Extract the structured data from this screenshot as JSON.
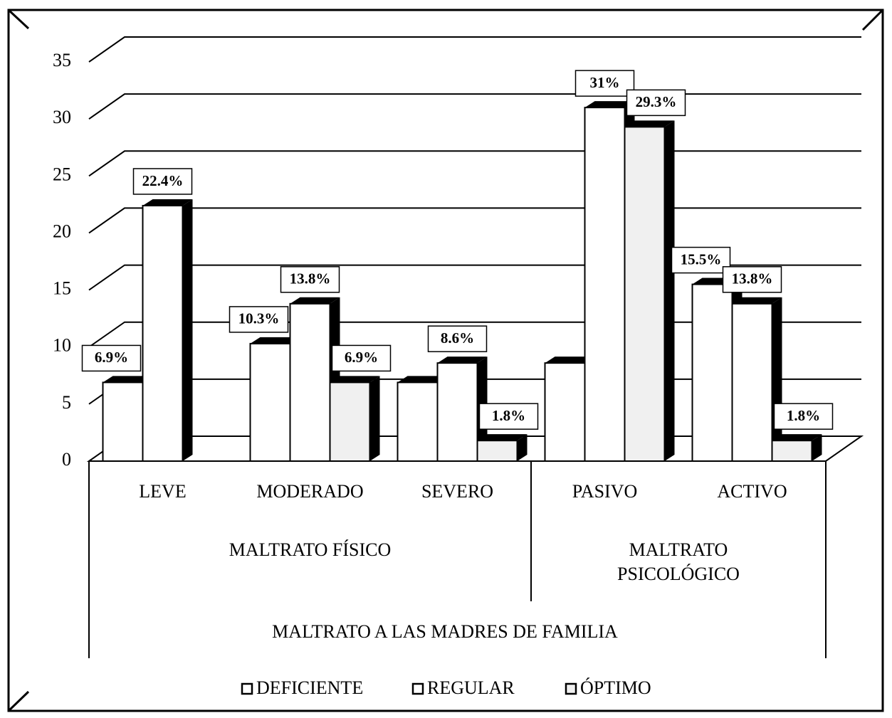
{
  "chart_data": {
    "type": "bar3d",
    "categories": [
      "LEVE",
      "MODERADO",
      "SEVERO",
      "PASIVO",
      "ACTIVO"
    ],
    "groups": [
      {
        "label": "MALTRATO FÍSICO",
        "span": 3
      },
      {
        "label": "MALTRATO PSICOLÓGICO",
        "span": 2
      }
    ],
    "xlabel": "MALTRATO A LAS MADRES DE FAMILIA",
    "series": [
      {
        "name": "DEFICIENTE",
        "color": "#ffffff",
        "values": [
          6.9,
          10.3,
          6.9,
          8.6,
          15.5
        ],
        "value_labels": [
          "6.9%",
          "10.3%",
          null,
          null,
          "15.5%"
        ]
      },
      {
        "name": "REGULAR",
        "color": "#ffffff",
        "values": [
          22.4,
          13.8,
          8.6,
          31,
          13.8
        ],
        "value_labels": [
          "22.4%",
          "13.8%",
          "8.6%",
          "31%",
          "13.8%"
        ]
      },
      {
        "name": "ÓPTIMO",
        "color": "#f0f0f0",
        "values": [
          null,
          6.9,
          1.8,
          29.3,
          1.8
        ],
        "value_labels": [
          null,
          "6.9%",
          "1.8%",
          "29.3%",
          "1.8%"
        ]
      }
    ],
    "ylim": [
      0,
      35
    ],
    "yticks": [
      0,
      5,
      10,
      15,
      20,
      25,
      30,
      35
    ],
    "grid": true,
    "legend": "bottom"
  }
}
